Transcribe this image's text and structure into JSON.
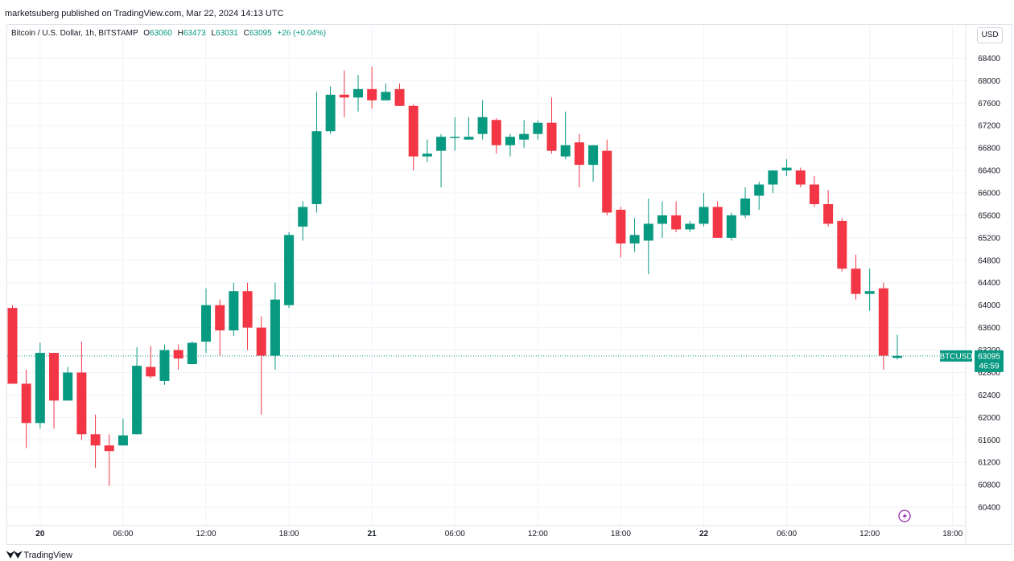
{
  "header": {
    "published": "marketsuberg published on TradingView.com, Mar 22, 2024 14:13 UTC"
  },
  "legend": {
    "symbol": "Bitcoin / U.S. Dollar, 1h, BITSTAMP",
    "o_label": "O",
    "o": "63060",
    "h_label": "H",
    "h": "63473",
    "l_label": "L",
    "l": "63031",
    "c_label": "C",
    "c": "63095",
    "change": "+26 (+0.04%)"
  },
  "currency_button": "USD",
  "price_tag": {
    "symbol": "BTCUSD",
    "price": "63095",
    "countdown": "46:59"
  },
  "footer": {
    "logo": "TradingView"
  },
  "colors": {
    "up": "#089981",
    "down": "#f23645",
    "grid": "#f0f3fa",
    "axis_text": "#131722"
  },
  "chart_data": {
    "type": "candlestick",
    "title": "Bitcoin / U.S. Dollar, 1h, BITSTAMP",
    "ylim": [
      60100,
      68750
    ],
    "y_ticks": [
      60400,
      60800,
      61200,
      61600,
      62000,
      62400,
      62800,
      63200,
      63600,
      64000,
      64400,
      64800,
      65200,
      65600,
      66000,
      66400,
      66800,
      67200,
      67600,
      68000,
      68400
    ],
    "x_ticks": [
      {
        "label": "20",
        "i": 2,
        "bold": true
      },
      {
        "label": "06:00",
        "i": 8,
        "bold": false
      },
      {
        "label": "12:00",
        "i": 14,
        "bold": false
      },
      {
        "label": "18:00",
        "i": 20,
        "bold": false
      },
      {
        "label": "21",
        "i": 26,
        "bold": true
      },
      {
        "label": "06:00",
        "i": 32,
        "bold": false
      },
      {
        "label": "12:00",
        "i": 38,
        "bold": false
      },
      {
        "label": "18:00",
        "i": 44,
        "bold": false
      },
      {
        "label": "22",
        "i": 50,
        "bold": true
      },
      {
        "label": "06:00",
        "i": 56,
        "bold": false
      },
      {
        "label": "12:00",
        "i": 62,
        "bold": false
      },
      {
        "label": "18:00",
        "i": 68,
        "bold": false
      }
    ],
    "last_price": 63095,
    "candles": [
      {
        "o": 63950,
        "h": 64000,
        "l": 62600,
        "c": 62600
      },
      {
        "o": 62600,
        "h": 62850,
        "l": 61450,
        "c": 61900
      },
      {
        "o": 61900,
        "h": 63330,
        "l": 61800,
        "c": 63150
      },
      {
        "o": 63150,
        "h": 63150,
        "l": 61800,
        "c": 62300
      },
      {
        "o": 62300,
        "h": 62900,
        "l": 62300,
        "c": 62800
      },
      {
        "o": 62800,
        "h": 63350,
        "l": 61600,
        "c": 61700
      },
      {
        "o": 61700,
        "h": 62050,
        "l": 61100,
        "c": 61500
      },
      {
        "o": 61500,
        "h": 61700,
        "l": 60780,
        "c": 61400
      },
      {
        "o": 61500,
        "h": 61980,
        "l": 61500,
        "c": 61680
      },
      {
        "o": 61700,
        "h": 63250,
        "l": 61700,
        "c": 62920
      },
      {
        "o": 62900,
        "h": 63270,
        "l": 62700,
        "c": 62730
      },
      {
        "o": 62650,
        "h": 63300,
        "l": 62580,
        "c": 63200
      },
      {
        "o": 63200,
        "h": 63300,
        "l": 62850,
        "c": 63050
      },
      {
        "o": 62950,
        "h": 63350,
        "l": 62950,
        "c": 63330
      },
      {
        "o": 63350,
        "h": 64300,
        "l": 63150,
        "c": 64000
      },
      {
        "o": 64000,
        "h": 64100,
        "l": 63100,
        "c": 63550
      },
      {
        "o": 63550,
        "h": 64400,
        "l": 63450,
        "c": 64250
      },
      {
        "o": 64250,
        "h": 64400,
        "l": 63200,
        "c": 63600
      },
      {
        "o": 63600,
        "h": 63800,
        "l": 62050,
        "c": 63100
      },
      {
        "o": 63100,
        "h": 64400,
        "l": 62850,
        "c": 64100
      },
      {
        "o": 64000,
        "h": 65300,
        "l": 63950,
        "c": 65250
      },
      {
        "o": 65400,
        "h": 65850,
        "l": 65150,
        "c": 65750
      },
      {
        "o": 65800,
        "h": 67800,
        "l": 65650,
        "c": 67100
      },
      {
        "o": 67100,
        "h": 67900,
        "l": 67050,
        "c": 67750
      },
      {
        "o": 67750,
        "h": 68180,
        "l": 67350,
        "c": 67700
      },
      {
        "o": 67700,
        "h": 68100,
        "l": 67450,
        "c": 67850
      },
      {
        "o": 67850,
        "h": 68250,
        "l": 67500,
        "c": 67650
      },
      {
        "o": 67650,
        "h": 67950,
        "l": 67650,
        "c": 67800
      },
      {
        "o": 67850,
        "h": 67950,
        "l": 67550,
        "c": 67550
      },
      {
        "o": 67550,
        "h": 67580,
        "l": 66400,
        "c": 66650
      },
      {
        "o": 66650,
        "h": 66950,
        "l": 66550,
        "c": 66700
      },
      {
        "o": 66750,
        "h": 67050,
        "l": 66100,
        "c": 67000
      },
      {
        "o": 67000,
        "h": 67350,
        "l": 66750,
        "c": 67000
      },
      {
        "o": 66950,
        "h": 67350,
        "l": 66950,
        "c": 67000
      },
      {
        "o": 67050,
        "h": 67650,
        "l": 66950,
        "c": 67350
      },
      {
        "o": 67300,
        "h": 67330,
        "l": 66700,
        "c": 66850
      },
      {
        "o": 66850,
        "h": 67050,
        "l": 66650,
        "c": 67000
      },
      {
        "o": 66950,
        "h": 67300,
        "l": 66800,
        "c": 67050
      },
      {
        "o": 67050,
        "h": 67300,
        "l": 66950,
        "c": 67250
      },
      {
        "o": 67250,
        "h": 67700,
        "l": 66700,
        "c": 66750
      },
      {
        "o": 66650,
        "h": 67450,
        "l": 66600,
        "c": 66850
      },
      {
        "o": 66900,
        "h": 67050,
        "l": 66100,
        "c": 66500
      },
      {
        "o": 66500,
        "h": 66850,
        "l": 66200,
        "c": 66850
      },
      {
        "o": 66750,
        "h": 66950,
        "l": 65600,
        "c": 65650
      },
      {
        "o": 65700,
        "h": 65750,
        "l": 64850,
        "c": 65100
      },
      {
        "o": 65100,
        "h": 65550,
        "l": 64950,
        "c": 65250
      },
      {
        "o": 65150,
        "h": 65900,
        "l": 64550,
        "c": 65450
      },
      {
        "o": 65450,
        "h": 65850,
        "l": 65200,
        "c": 65600
      },
      {
        "o": 65600,
        "h": 65850,
        "l": 65300,
        "c": 65350
      },
      {
        "o": 65350,
        "h": 65500,
        "l": 65300,
        "c": 65450
      },
      {
        "o": 65450,
        "h": 66000,
        "l": 65400,
        "c": 65750
      },
      {
        "o": 65750,
        "h": 65850,
        "l": 65200,
        "c": 65200
      },
      {
        "o": 65200,
        "h": 65650,
        "l": 65150,
        "c": 65600
      },
      {
        "o": 65600,
        "h": 66100,
        "l": 65550,
        "c": 65900
      },
      {
        "o": 65950,
        "h": 66200,
        "l": 65700,
        "c": 66150
      },
      {
        "o": 66150,
        "h": 66400,
        "l": 66000,
        "c": 66400
      },
      {
        "o": 66400,
        "h": 66600,
        "l": 66300,
        "c": 66450
      },
      {
        "o": 66400,
        "h": 66450,
        "l": 66100,
        "c": 66150
      },
      {
        "o": 66150,
        "h": 66300,
        "l": 65750,
        "c": 65800
      },
      {
        "o": 65800,
        "h": 66050,
        "l": 65400,
        "c": 65450
      },
      {
        "o": 65500,
        "h": 65550,
        "l": 64600,
        "c": 64650
      },
      {
        "o": 64650,
        "h": 64900,
        "l": 64100,
        "c": 64200
      },
      {
        "o": 64200,
        "h": 64650,
        "l": 63900,
        "c": 64250
      },
      {
        "o": 64300,
        "h": 64400,
        "l": 62850,
        "c": 63100
      },
      {
        "o": 63060,
        "h": 63473,
        "l": 63031,
        "c": 63095
      }
    ]
  }
}
